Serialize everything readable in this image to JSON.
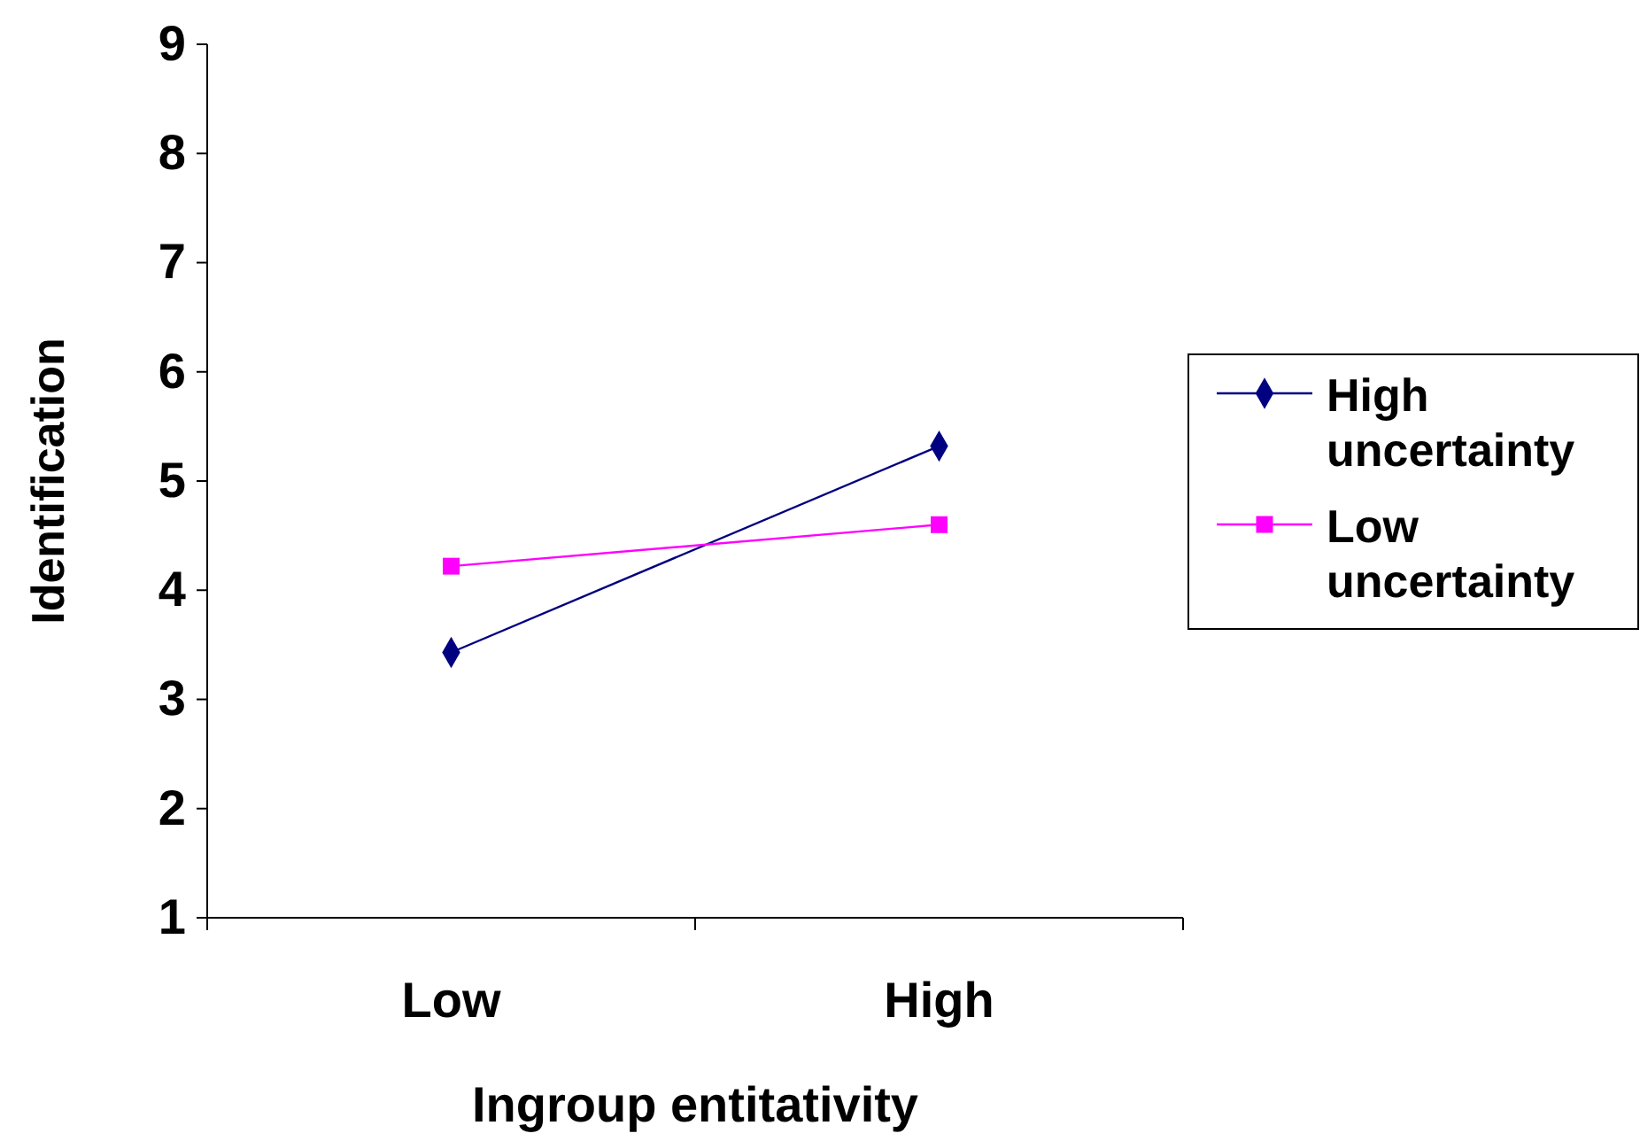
{
  "chart_data": {
    "type": "line",
    "xlabel": "Ingroup entitativity",
    "ylabel": "Identification",
    "categories": [
      "Low",
      "High"
    ],
    "series": [
      {
        "name": "High uncertainty",
        "color": "#000080",
        "values": [
          3.43,
          5.32
        ],
        "marker": "diamond"
      },
      {
        "name": "Low uncertainty",
        "color": "#ff00ff",
        "values": [
          4.22,
          4.6
        ],
        "marker": "square"
      }
    ],
    "ylim": [
      1,
      9
    ],
    "yticks": [
      1,
      2,
      3,
      4,
      5,
      6,
      7,
      8,
      9
    ],
    "grid": false,
    "legend": "right"
  }
}
